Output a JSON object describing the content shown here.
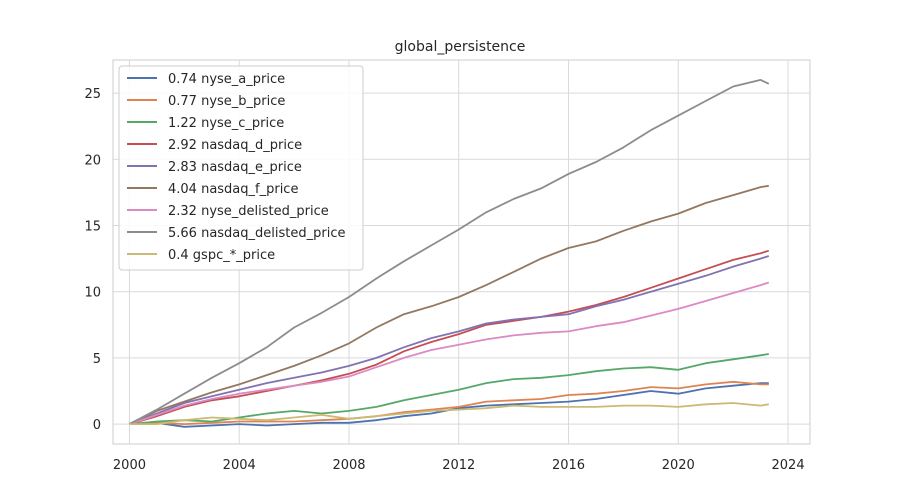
{
  "chart_data": {
    "type": "line",
    "title": "global_persistence",
    "xlabel": "",
    "ylabel": "",
    "xlim": [
      1999.4,
      2024.8
    ],
    "ylim": [
      -1.5,
      27.5
    ],
    "x_ticks": [
      2000,
      2004,
      2008,
      2012,
      2016,
      2020,
      2024
    ],
    "y_ticks": [
      0,
      5,
      10,
      15,
      20,
      25
    ],
    "grid": true,
    "legend_position": "top-left",
    "series": [
      {
        "name": "0.74 nyse_a_price",
        "color": "#4c72b0",
        "points": [
          [
            2000.0,
            0.0
          ],
          [
            2001.0,
            0.1
          ],
          [
            2002.0,
            -0.2
          ],
          [
            2003.0,
            -0.1
          ],
          [
            2004.0,
            0.0
          ],
          [
            2005.0,
            -0.1
          ],
          [
            2006.0,
            0.0
          ],
          [
            2007.0,
            0.1
          ],
          [
            2008.0,
            0.1
          ],
          [
            2009.0,
            0.3
          ],
          [
            2010.0,
            0.6
          ],
          [
            2011.0,
            0.8
          ],
          [
            2012.0,
            1.2
          ],
          [
            2013.0,
            1.4
          ],
          [
            2014.0,
            1.5
          ],
          [
            2015.0,
            1.6
          ],
          [
            2016.0,
            1.7
          ],
          [
            2017.0,
            1.9
          ],
          [
            2018.0,
            2.2
          ],
          [
            2019.0,
            2.5
          ],
          [
            2020.0,
            2.3
          ],
          [
            2021.0,
            2.7
          ],
          [
            2022.0,
            2.9
          ],
          [
            2023.0,
            3.1
          ],
          [
            2023.3,
            3.1
          ]
        ]
      },
      {
        "name": "0.77 nyse_b_price",
        "color": "#dd8452",
        "points": [
          [
            2000.0,
            0.0
          ],
          [
            2001.0,
            0.1
          ],
          [
            2002.0,
            0.0
          ],
          [
            2003.0,
            0.1
          ],
          [
            2004.0,
            0.2
          ],
          [
            2005.0,
            0.2
          ],
          [
            2006.0,
            0.2
          ],
          [
            2007.0,
            0.3
          ],
          [
            2008.0,
            0.4
          ],
          [
            2009.0,
            0.6
          ],
          [
            2010.0,
            0.9
          ],
          [
            2011.0,
            1.1
          ],
          [
            2012.0,
            1.3
          ],
          [
            2013.0,
            1.7
          ],
          [
            2014.0,
            1.8
          ],
          [
            2015.0,
            1.9
          ],
          [
            2016.0,
            2.2
          ],
          [
            2017.0,
            2.3
          ],
          [
            2018.0,
            2.5
          ],
          [
            2019.0,
            2.8
          ],
          [
            2020.0,
            2.7
          ],
          [
            2021.0,
            3.0
          ],
          [
            2022.0,
            3.2
          ],
          [
            2023.0,
            3.0
          ],
          [
            2023.3,
            3.0
          ]
        ]
      },
      {
        "name": "1.22 nyse_c_price",
        "color": "#55a868",
        "points": [
          [
            2000.0,
            0.0
          ],
          [
            2001.0,
            0.2
          ],
          [
            2002.0,
            0.3
          ],
          [
            2003.0,
            0.2
          ],
          [
            2004.0,
            0.5
          ],
          [
            2005.0,
            0.8
          ],
          [
            2006.0,
            1.0
          ],
          [
            2007.0,
            0.8
          ],
          [
            2008.0,
            1.0
          ],
          [
            2009.0,
            1.3
          ],
          [
            2010.0,
            1.8
          ],
          [
            2011.0,
            2.2
          ],
          [
            2012.0,
            2.6
          ],
          [
            2013.0,
            3.1
          ],
          [
            2014.0,
            3.4
          ],
          [
            2015.0,
            3.5
          ],
          [
            2016.0,
            3.7
          ],
          [
            2017.0,
            4.0
          ],
          [
            2018.0,
            4.2
          ],
          [
            2019.0,
            4.3
          ],
          [
            2020.0,
            4.1
          ],
          [
            2021.0,
            4.6
          ],
          [
            2022.0,
            4.9
          ],
          [
            2023.0,
            5.2
          ],
          [
            2023.3,
            5.3
          ]
        ]
      },
      {
        "name": "2.92 nasdaq_d_price",
        "color": "#c44e52",
        "points": [
          [
            2000.0,
            0.0
          ],
          [
            2001.0,
            0.6
          ],
          [
            2002.0,
            1.3
          ],
          [
            2003.0,
            1.8
          ],
          [
            2004.0,
            2.1
          ],
          [
            2005.0,
            2.5
          ],
          [
            2006.0,
            2.9
          ],
          [
            2007.0,
            3.3
          ],
          [
            2008.0,
            3.8
          ],
          [
            2009.0,
            4.5
          ],
          [
            2010.0,
            5.5
          ],
          [
            2011.0,
            6.2
          ],
          [
            2012.0,
            6.8
          ],
          [
            2013.0,
            7.5
          ],
          [
            2014.0,
            7.8
          ],
          [
            2015.0,
            8.1
          ],
          [
            2016.0,
            8.5
          ],
          [
            2017.0,
            9.0
          ],
          [
            2018.0,
            9.6
          ],
          [
            2019.0,
            10.3
          ],
          [
            2020.0,
            11.0
          ],
          [
            2021.0,
            11.7
          ],
          [
            2022.0,
            12.4
          ],
          [
            2023.0,
            12.9
          ],
          [
            2023.3,
            13.1
          ]
        ]
      },
      {
        "name": "2.83 nasdaq_e_price",
        "color": "#8172b3",
        "points": [
          [
            2000.0,
            0.0
          ],
          [
            2001.0,
            0.8
          ],
          [
            2002.0,
            1.6
          ],
          [
            2003.0,
            2.1
          ],
          [
            2004.0,
            2.6
          ],
          [
            2005.0,
            3.1
          ],
          [
            2006.0,
            3.5
          ],
          [
            2007.0,
            3.9
          ],
          [
            2008.0,
            4.4
          ],
          [
            2009.0,
            5.0
          ],
          [
            2010.0,
            5.8
          ],
          [
            2011.0,
            6.5
          ],
          [
            2012.0,
            7.0
          ],
          [
            2013.0,
            7.6
          ],
          [
            2014.0,
            7.9
          ],
          [
            2015.0,
            8.1
          ],
          [
            2016.0,
            8.3
          ],
          [
            2017.0,
            8.9
          ],
          [
            2018.0,
            9.4
          ],
          [
            2019.0,
            10.0
          ],
          [
            2020.0,
            10.6
          ],
          [
            2021.0,
            11.2
          ],
          [
            2022.0,
            11.9
          ],
          [
            2023.0,
            12.5
          ],
          [
            2023.3,
            12.7
          ]
        ]
      },
      {
        "name": "4.04 nasdaq_f_price",
        "color": "#937860",
        "points": [
          [
            2000.0,
            0.0
          ],
          [
            2001.0,
            1.0
          ],
          [
            2002.0,
            1.7
          ],
          [
            2003.0,
            2.4
          ],
          [
            2004.0,
            3.0
          ],
          [
            2005.0,
            3.7
          ],
          [
            2006.0,
            4.4
          ],
          [
            2007.0,
            5.2
          ],
          [
            2008.0,
            6.1
          ],
          [
            2009.0,
            7.3
          ],
          [
            2010.0,
            8.3
          ],
          [
            2011.0,
            8.9
          ],
          [
            2012.0,
            9.6
          ],
          [
            2013.0,
            10.5
          ],
          [
            2014.0,
            11.5
          ],
          [
            2015.0,
            12.5
          ],
          [
            2016.0,
            13.3
          ],
          [
            2017.0,
            13.8
          ],
          [
            2018.0,
            14.6
          ],
          [
            2019.0,
            15.3
          ],
          [
            2020.0,
            15.9
          ],
          [
            2021.0,
            16.7
          ],
          [
            2022.0,
            17.3
          ],
          [
            2023.0,
            17.9
          ],
          [
            2023.3,
            18.0
          ]
        ]
      },
      {
        "name": "2.32 nyse_delisted_price",
        "color": "#da8bc3",
        "points": [
          [
            2000.0,
            0.0
          ],
          [
            2001.0,
            0.7
          ],
          [
            2002.0,
            1.4
          ],
          [
            2003.0,
            1.9
          ],
          [
            2004.0,
            2.3
          ],
          [
            2005.0,
            2.6
          ],
          [
            2006.0,
            2.9
          ],
          [
            2007.0,
            3.2
          ],
          [
            2008.0,
            3.6
          ],
          [
            2009.0,
            4.3
          ],
          [
            2010.0,
            5.0
          ],
          [
            2011.0,
            5.6
          ],
          [
            2012.0,
            6.0
          ],
          [
            2013.0,
            6.4
          ],
          [
            2014.0,
            6.7
          ],
          [
            2015.0,
            6.9
          ],
          [
            2016.0,
            7.0
          ],
          [
            2017.0,
            7.4
          ],
          [
            2018.0,
            7.7
          ],
          [
            2019.0,
            8.2
          ],
          [
            2020.0,
            8.7
          ],
          [
            2021.0,
            9.3
          ],
          [
            2022.0,
            9.9
          ],
          [
            2023.0,
            10.5
          ],
          [
            2023.3,
            10.7
          ]
        ]
      },
      {
        "name": "5.66 nasdaq_delisted_price",
        "color": "#8c8c8c",
        "points": [
          [
            2000.0,
            0.0
          ],
          [
            2001.0,
            1.1
          ],
          [
            2002.0,
            2.3
          ],
          [
            2003.0,
            3.5
          ],
          [
            2004.0,
            4.6
          ],
          [
            2005.0,
            5.8
          ],
          [
            2006.0,
            7.3
          ],
          [
            2007.0,
            8.4
          ],
          [
            2008.0,
            9.6
          ],
          [
            2009.0,
            11.0
          ],
          [
            2010.0,
            12.3
          ],
          [
            2011.0,
            13.5
          ],
          [
            2012.0,
            14.7
          ],
          [
            2013.0,
            16.0
          ],
          [
            2014.0,
            17.0
          ],
          [
            2015.0,
            17.8
          ],
          [
            2016.0,
            18.9
          ],
          [
            2017.0,
            19.8
          ],
          [
            2018.0,
            20.9
          ],
          [
            2019.0,
            22.2
          ],
          [
            2020.0,
            23.3
          ],
          [
            2021.0,
            24.4
          ],
          [
            2022.0,
            25.5
          ],
          [
            2023.0,
            26.0
          ],
          [
            2023.3,
            25.7
          ]
        ]
      },
      {
        "name": "0.4 gspc_*_price",
        "color": "#ccb974",
        "points": [
          [
            2000.0,
            0.0
          ],
          [
            2001.0,
            0.0
          ],
          [
            2002.0,
            0.3
          ],
          [
            2003.0,
            0.5
          ],
          [
            2004.0,
            0.4
          ],
          [
            2005.0,
            0.3
          ],
          [
            2006.0,
            0.5
          ],
          [
            2007.0,
            0.7
          ],
          [
            2008.0,
            0.4
          ],
          [
            2009.0,
            0.6
          ],
          [
            2010.0,
            0.8
          ],
          [
            2011.0,
            1.0
          ],
          [
            2012.0,
            1.1
          ],
          [
            2013.0,
            1.2
          ],
          [
            2014.0,
            1.4
          ],
          [
            2015.0,
            1.3
          ],
          [
            2016.0,
            1.3
          ],
          [
            2017.0,
            1.3
          ],
          [
            2018.0,
            1.4
          ],
          [
            2019.0,
            1.4
          ],
          [
            2020.0,
            1.3
          ],
          [
            2021.0,
            1.5
          ],
          [
            2022.0,
            1.6
          ],
          [
            2023.0,
            1.4
          ],
          [
            2023.3,
            1.5
          ]
        ]
      }
    ]
  }
}
